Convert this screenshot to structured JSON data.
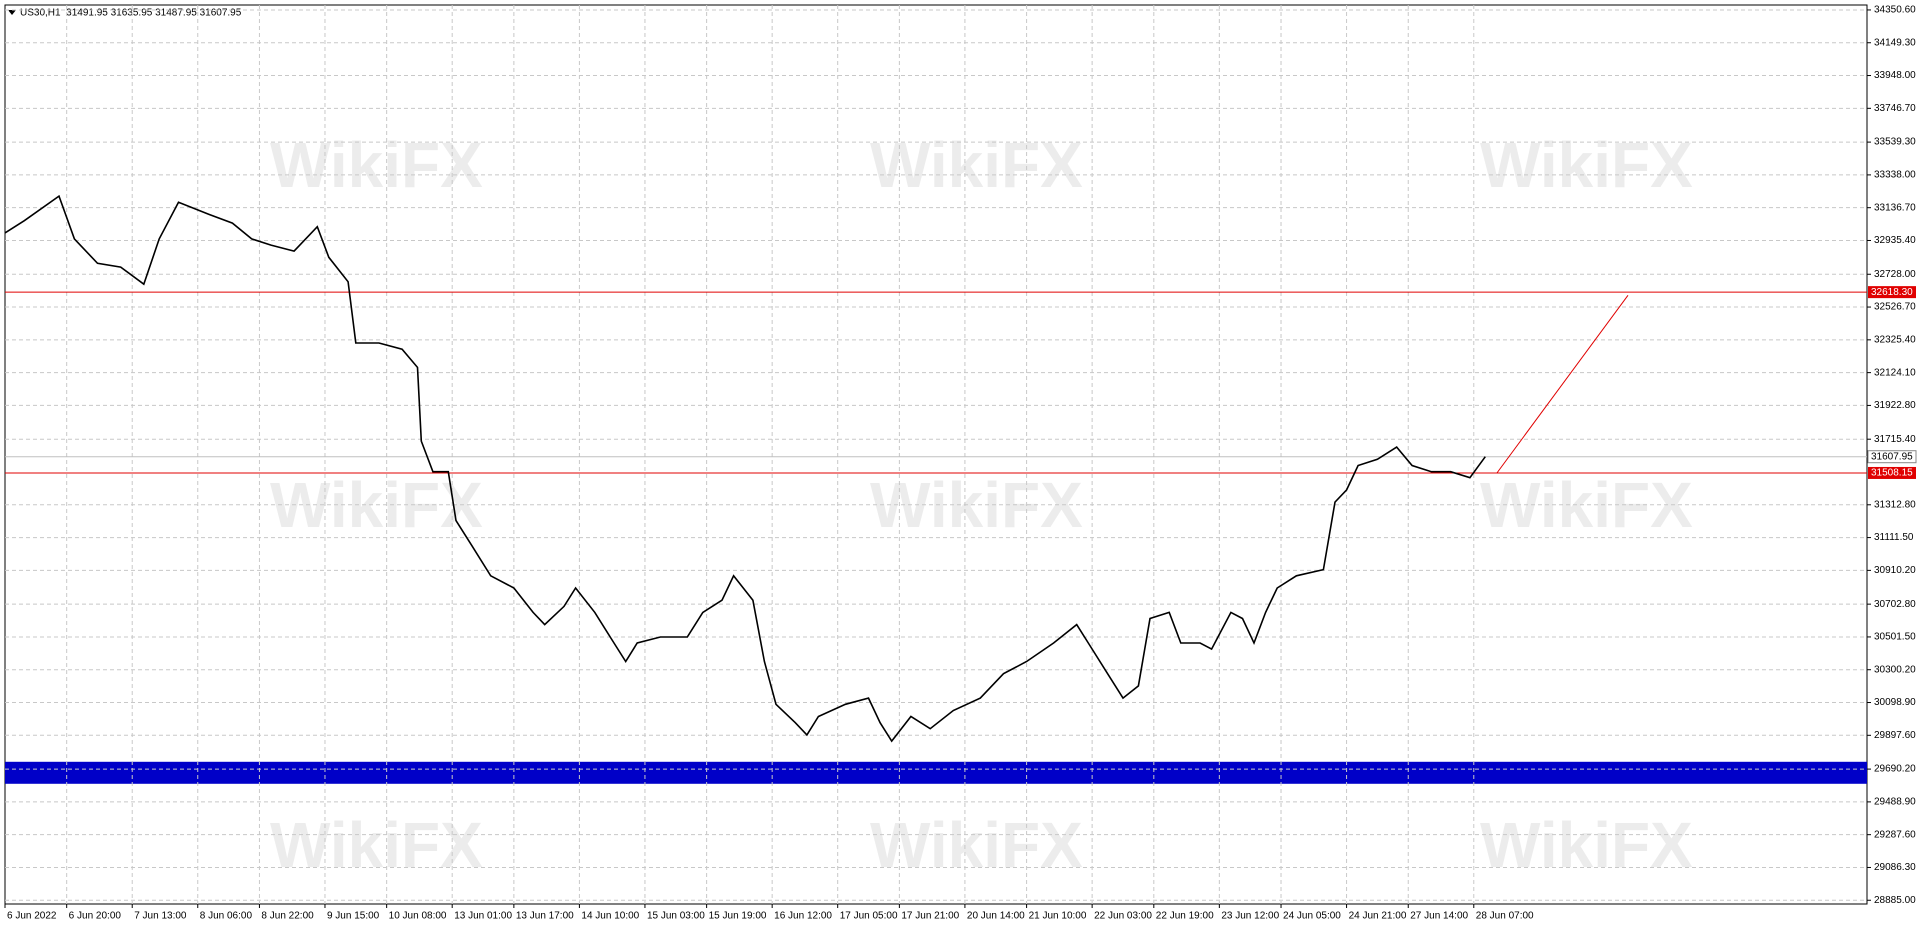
{
  "chart_data": {
    "type": "line",
    "header": "US30,H1  31491.95 31635.95 31487.95 31607.95",
    "watermark": "WikiFX",
    "color": "#000000",
    "x": [
      0,
      5,
      14,
      18,
      24,
      30,
      36,
      40,
      45,
      53,
      59,
      64,
      69,
      75,
      81,
      84,
      89,
      91,
      97,
      103,
      107,
      108,
      111,
      115,
      117,
      121,
      126,
      132,
      137,
      140,
      145,
      148,
      153,
      157,
      161,
      164,
      170,
      177,
      181,
      186,
      189,
      194,
      197,
      200,
      205,
      208,
      211,
      218,
      224,
      227,
      230,
      235,
      240,
      246,
      253,
      259,
      265,
      272,
      278,
      281,
      286,
      290,
      294,
      297,
      302,
      305,
      310,
      313,
      318,
      321,
      324,
      327,
      330,
      335,
      342,
      345,
      348,
      351,
      356,
      361,
      365,
      370,
      375,
      380,
      384
    ],
    "values": [
      32982,
      33057,
      33208,
      32945,
      32795,
      32772,
      32667,
      32945,
      33170,
      33095,
      33042,
      32945,
      32907,
      32870,
      33020,
      32832,
      32682,
      32306,
      32306,
      32268,
      32156,
      31704,
      31516,
      31516,
      31216,
      31065,
      30877,
      30802,
      30652,
      30577,
      30689,
      30802,
      30652,
      30501,
      30351,
      30464,
      30501,
      30501,
      30652,
      30727,
      30877,
      30727,
      30351,
      30088,
      29975,
      29900,
      30013,
      30088,
      30126,
      29975,
      29862,
      30013,
      29938,
      30050,
      30126,
      30276,
      30351,
      30464,
      30577,
      30464,
      30276,
      30126,
      30201,
      30615,
      30652,
      30464,
      30464,
      30427,
      30652,
      30615,
      30464,
      30652,
      30802,
      30877,
      30915,
      31329,
      31404,
      31554,
      31592,
      31667,
      31554,
      31516,
      31516,
      31479,
      31607.95
    ],
    "xlim": [
      0,
      483
    ],
    "ylim": [
      28862,
      34381
    ],
    "xticks": [
      {
        "value": 0,
        "label": "6 Jun 2022"
      },
      {
        "value": 16,
        "label": "6 Jun 20:00"
      },
      {
        "value": 33,
        "label": "7 Jun 13:00"
      },
      {
        "value": 50,
        "label": "8 Jun 06:00"
      },
      {
        "value": 66,
        "label": "8 Jun 22:00"
      },
      {
        "value": 83,
        "label": "9 Jun 15:00"
      },
      {
        "value": 99,
        "label": "10 Jun 08:00"
      },
      {
        "value": 116,
        "label": "13 Jun 01:00"
      },
      {
        "value": 132,
        "label": "13 Jun 17:00"
      },
      {
        "value": 149,
        "label": "14 Jun 10:00"
      },
      {
        "value": 166,
        "label": "15 Jun 03:00"
      },
      {
        "value": 182,
        "label": "15 Jun 19:00"
      },
      {
        "value": 199,
        "label": "16 Jun 12:00"
      },
      {
        "value": 216,
        "label": "17 Jun 05:00"
      },
      {
        "value": 232,
        "label": "17 Jun 21:00"
      },
      {
        "value": 249,
        "label": "20 Jun 14:00"
      },
      {
        "value": 265,
        "label": "21 Jun 10:00"
      },
      {
        "value": 282,
        "label": "22 Jun 03:00"
      },
      {
        "value": 298,
        "label": "22 Jun 19:00"
      },
      {
        "value": 315,
        "label": "23 Jun 12:00"
      },
      {
        "value": 331,
        "label": "24 Jun 05:00"
      },
      {
        "value": 348,
        "label": "24 Jun 21:00"
      },
      {
        "value": 364,
        "label": "27 Jun 14:00"
      },
      {
        "value": 381,
        "label": "28 Jun 07:00"
      }
    ],
    "yticks": [
      {
        "value": 34350.6,
        "label": "34350.60"
      },
      {
        "value": 34149.3,
        "label": "34149.30"
      },
      {
        "value": 33948,
        "label": "33948.00"
      },
      {
        "value": 33746.7,
        "label": "33746.70"
      },
      {
        "value": 33539.3,
        "label": "33539.30"
      },
      {
        "value": 33338,
        "label": "33338.00"
      },
      {
        "value": 33136.7,
        "label": "33136.70"
      },
      {
        "value": 32935.4,
        "label": "32935.40"
      },
      {
        "value": 32728,
        "label": "32728.00"
      },
      {
        "value": 32526.7,
        "label": "32526.70"
      },
      {
        "value": 32325.4,
        "label": "32325.40"
      },
      {
        "value": 32124.1,
        "label": "32124.10"
      },
      {
        "value": 31922.8,
        "label": "31922.80"
      },
      {
        "value": 31715.4,
        "label": "31715.40"
      },
      {
        "value": 31312.8,
        "label": "31312.80"
      },
      {
        "value": 31111.5,
        "label": "31111.50"
      },
      {
        "value": 30910.2,
        "label": "30910.20"
      },
      {
        "value": 30702.8,
        "label": "30702.80"
      },
      {
        "value": 30501.5,
        "label": "30501.50"
      },
      {
        "value": 30300.2,
        "label": "30300.20"
      },
      {
        "value": 30098.9,
        "label": "30098.90"
      },
      {
        "value": 29897.6,
        "label": "29897.60"
      },
      {
        "value": 29690.2,
        "label": "29690.20"
      },
      {
        "value": 29488.9,
        "label": "29488.90"
      },
      {
        "value": 29287.6,
        "label": "29287.60"
      },
      {
        "value": 29086.3,
        "label": "29086.30"
      },
      {
        "value": 28885,
        "label": "28885.00"
      }
    ],
    "grid": true,
    "levels": [
      {
        "value": 32618.3,
        "label": "32618.30",
        "color": "#e00000"
      },
      {
        "value": 31607.95,
        "label": "31607.95",
        "color": "#c0c0c0"
      },
      {
        "value": 31508.15,
        "label": "31508.15",
        "color": "#e00000"
      }
    ],
    "zone": {
      "range": [
        29600,
        29735
      ],
      "color": "#0000c8"
    },
    "trend_line": {
      "x": [
        387,
        421
      ],
      "values": [
        31508,
        32599
      ],
      "color": "#e00000"
    }
  }
}
